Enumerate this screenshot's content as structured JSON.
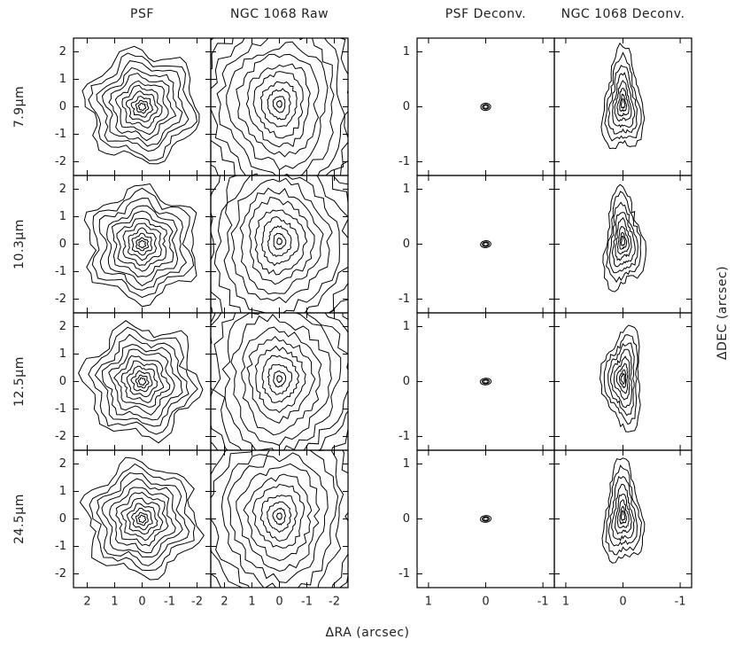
{
  "columns": [
    "PSF",
    "NGC 1068 Raw",
    "PSF Deconv.",
    "NGC 1068 Deconv."
  ],
  "rows": [
    "7.9μm",
    "10.3μm",
    "12.5μm",
    "24.5μm"
  ],
  "x_label": "ΔRA (arcsec)",
  "y_label": "ΔDEC (arcsec)",
  "raw_axes": {
    "xlim": [
      2.5,
      -2.5
    ],
    "ylim": [
      -2.5,
      2.5
    ],
    "xticks": [
      2,
      1,
      0,
      -1,
      -2
    ],
    "yticks": [
      -2,
      -1,
      0,
      1,
      2
    ]
  },
  "deconv_axes": {
    "xlim": [
      1.2,
      -1.2
    ],
    "ylim": [
      -1.25,
      1.25
    ],
    "xticks": [
      1,
      0,
      -1
    ],
    "yticks": [
      -1,
      0,
      1
    ]
  }
}
